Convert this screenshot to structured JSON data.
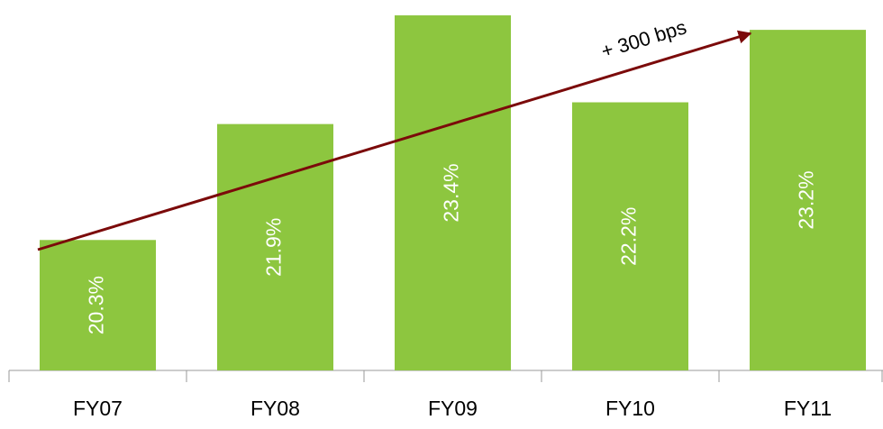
{
  "chart_data": {
    "type": "bar",
    "categories": [
      "FY07",
      "FY08",
      "FY09",
      "FY10",
      "FY11"
    ],
    "values": [
      20.3,
      21.9,
      23.4,
      22.2,
      23.2
    ],
    "value_labels": [
      "20.3%",
      "21.9%",
      "23.4%",
      "22.2%",
      "23.2%"
    ],
    "color": "#8dc63f",
    "ylim": [
      18.5,
      23.5
    ],
    "annotation": "+ 300 bps",
    "annotation_color": "#7b0a0a"
  }
}
